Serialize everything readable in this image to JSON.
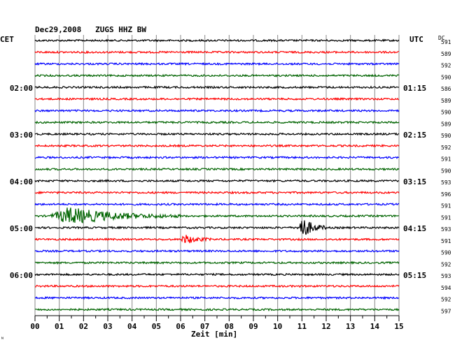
{
  "chart_data": {
    "type": "line",
    "title": "Dec29,2008   ZUGS HHZ BW",
    "left_label": "CET",
    "right_label": "UTC",
    "dc_label": "DC",
    "xlabel": "Zeit [min]",
    "corner_mark": "ᴺ",
    "x_ticks": [
      "00",
      "01",
      "02",
      "03",
      "04",
      "05",
      "06",
      "07",
      "08",
      "09",
      "10",
      "11",
      "12",
      "13",
      "14",
      "15"
    ],
    "xlim": [
      0,
      15
    ],
    "trace_colors": [
      "#000000",
      "#ff0000",
      "#0000ff",
      "#006400"
    ],
    "left_times": [
      {
        "label": "02:00",
        "row": 4
      },
      {
        "label": "03:00",
        "row": 8
      },
      {
        "label": "04:00",
        "row": 12
      },
      {
        "label": "05:00",
        "row": 16
      },
      {
        "label": "06:00",
        "row": 20
      }
    ],
    "right_times": [
      {
        "label": "01:15",
        "row": 4
      },
      {
        "label": "02:15",
        "row": 8
      },
      {
        "label": "03:15",
        "row": 12
      },
      {
        "label": "04:15",
        "row": 16
      },
      {
        "label": "05:15",
        "row": 20
      }
    ],
    "dc_values": [
      "591",
      "589",
      "592",
      "590",
      "586",
      "589",
      "590",
      "589",
      "590",
      "592",
      "591",
      "590",
      "593",
      "596",
      "591",
      "591",
      "593",
      "591",
      "590",
      "592",
      "593",
      "594",
      "592",
      "597"
    ],
    "events": [
      {
        "row": 15,
        "start_min": 0.6,
        "end_min": 6.0,
        "peak": 1.0
      },
      {
        "row": 17,
        "start_min": 6.0,
        "end_min": 7.3,
        "peak": 0.55
      },
      {
        "row": 16,
        "start_min": 10.8,
        "end_min": 12.0,
        "peak": 1.4
      }
    ]
  }
}
